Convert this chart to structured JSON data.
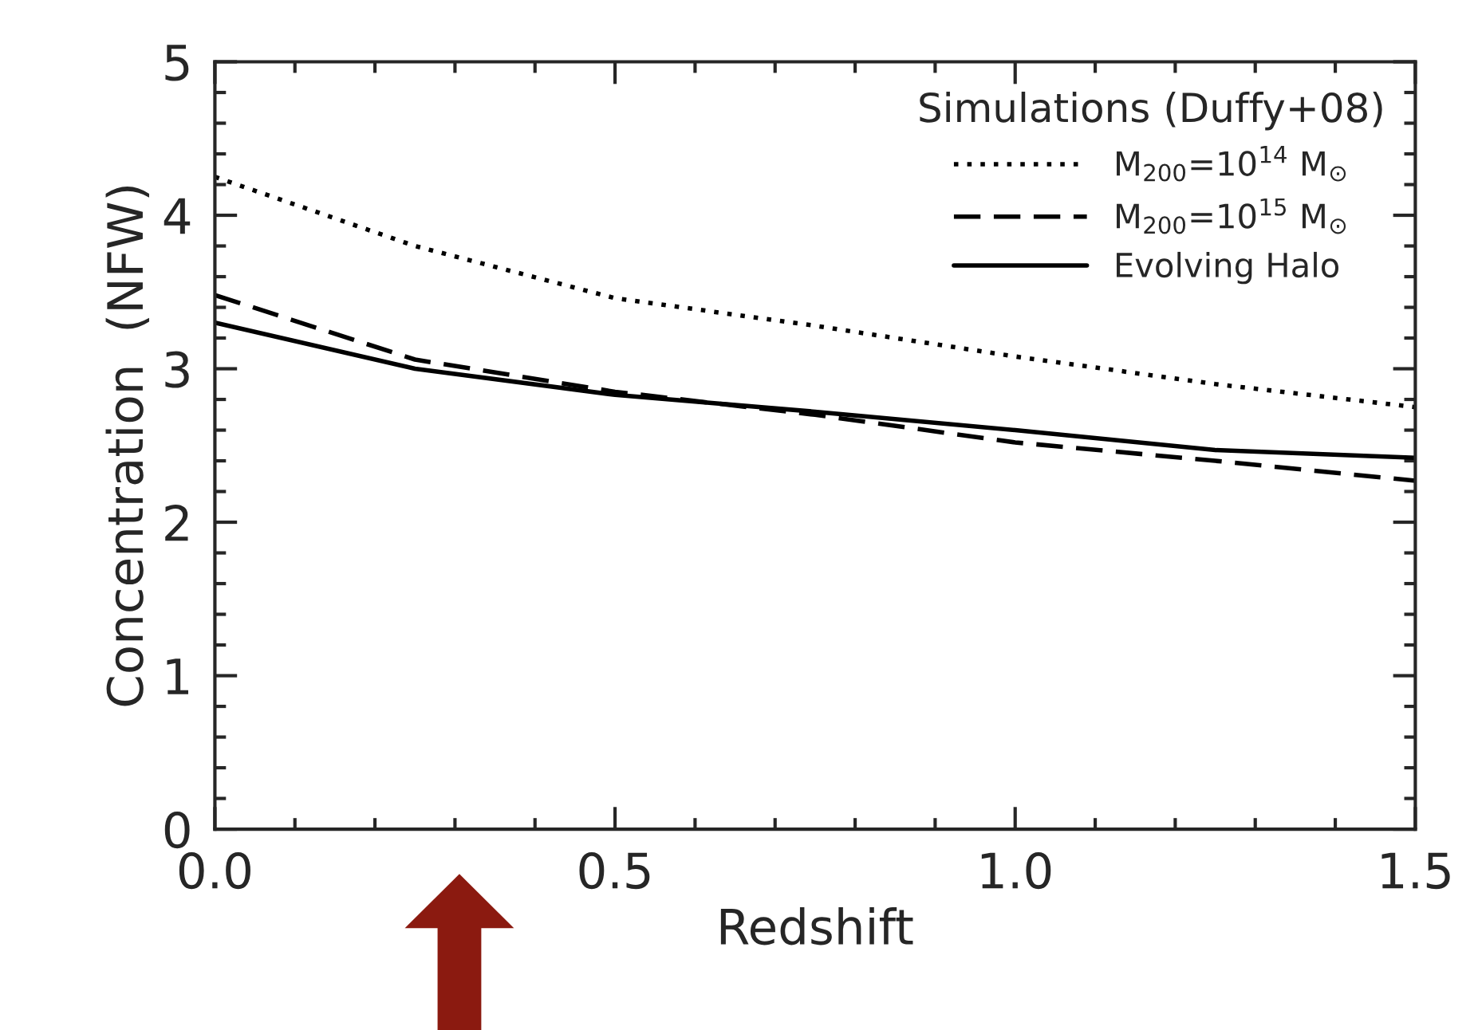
{
  "chart_data": {
    "type": "line",
    "xlabel": "Redshift",
    "ylabel": "Concentration  (NFW)",
    "legend_title": "Simulations (Duffy+08)",
    "legend": "top right",
    "grid": false,
    "xlim": [
      0.0,
      1.5
    ],
    "xticks": [
      {
        "value": 0.0,
        "label": "0.0"
      },
      0.5,
      {
        "value": 1.0,
        "label": "1.0"
      },
      1.5
    ],
    "ylim": [
      0,
      5
    ],
    "yticks": [
      0,
      1,
      2,
      3,
      4,
      5
    ],
    "series": [
      {
        "name": "M$_{200}$=10$^{14}$ M$_{⊙}$",
        "color": "#000000",
        "line_style": "dotted",
        "x": [
          0.0,
          0.25,
          0.5,
          0.75,
          1.0,
          1.25,
          1.5
        ],
        "values": [
          4.25,
          3.8,
          3.46,
          3.28,
          3.08,
          2.9,
          2.75
        ]
      },
      {
        "name": "M$_{200}$=10$^{15}$ M$_{⊙}$",
        "color": "#000000",
        "line_style": "dashed",
        "x": [
          0.0,
          0.25,
          0.5,
          0.75,
          1.0,
          1.25,
          1.5
        ],
        "values": [
          3.48,
          3.06,
          2.85,
          2.7,
          2.52,
          2.4,
          2.27
        ]
      },
      {
        "name": "Evolving Halo",
        "color": "#000000",
        "line_style": "solid",
        "x": [
          0.0,
          0.25,
          0.5,
          0.75,
          1.0,
          1.25,
          1.5
        ],
        "values": [
          3.3,
          3.0,
          2.83,
          2.72,
          2.6,
          2.47,
          2.42
        ]
      }
    ]
  }
}
